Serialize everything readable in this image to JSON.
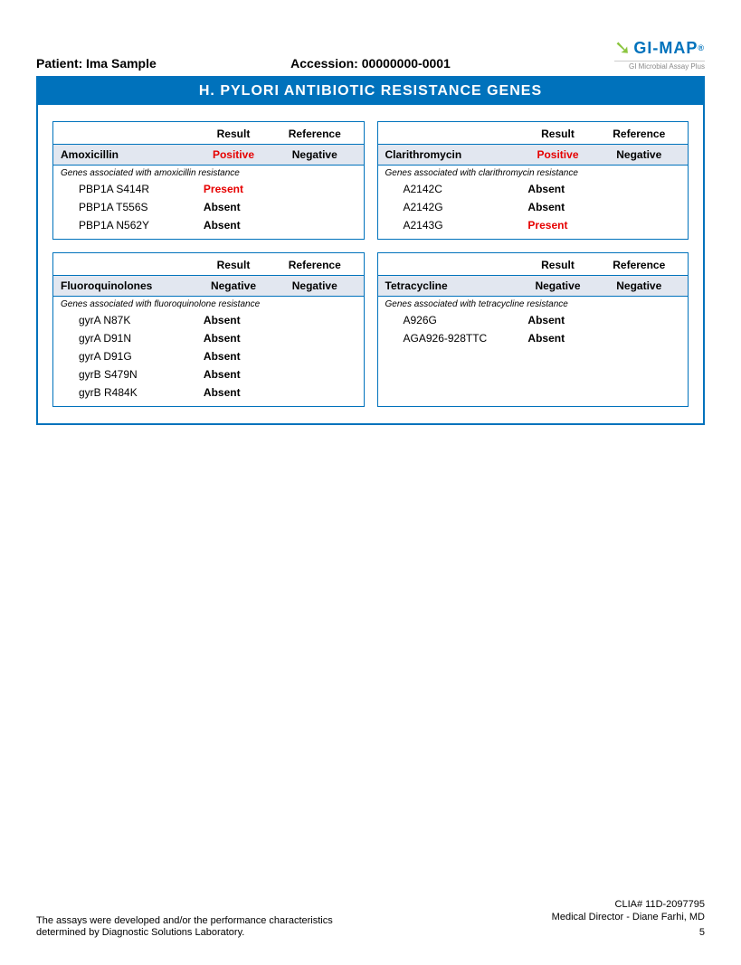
{
  "header": {
    "patient_label": "Patient:",
    "patient_name": "Ima Sample",
    "accession_label": "Accession:",
    "accession_value": "00000000-0001",
    "logo_text": "GI-MAP",
    "logo_sub": "GI Microbial Assay Plus"
  },
  "title": "H. PYLORI ANTIBIOTIC RESISTANCE GENES",
  "col_labels": {
    "result": "Result",
    "reference": "Reference"
  },
  "panels": [
    {
      "drug": "Amoxicillin",
      "result": "Positive",
      "result_pos": true,
      "reference": "Negative",
      "genes_note": "Genes associated with amoxicillin resistance",
      "genes": [
        {
          "name": "PBP1A S414R",
          "status": "Present",
          "pos": true
        },
        {
          "name": "PBP1A T556S",
          "status": "Absent",
          "pos": false
        },
        {
          "name": "PBP1A N562Y",
          "status": "Absent",
          "pos": false
        }
      ]
    },
    {
      "drug": "Clarithromycin",
      "result": "Positive",
      "result_pos": true,
      "reference": "Negative",
      "genes_note": "Genes associated with clarithromycin resistance",
      "genes": [
        {
          "name": "A2142C",
          "status": "Absent",
          "pos": false
        },
        {
          "name": "A2142G",
          "status": "Absent",
          "pos": false
        },
        {
          "name": "A2143G",
          "status": "Present",
          "pos": true
        }
      ]
    },
    {
      "drug": "Fluoroquinolones",
      "result": "Negative",
      "result_pos": false,
      "reference": "Negative",
      "genes_note": "Genes associated with fluoroquinolone resistance",
      "genes": [
        {
          "name": "gyrA N87K",
          "status": "Absent",
          "pos": false
        },
        {
          "name": "gyrA D91N",
          "status": "Absent",
          "pos": false
        },
        {
          "name": "gyrA D91G",
          "status": "Absent",
          "pos": false
        },
        {
          "name": "gyrB S479N",
          "status": "Absent",
          "pos": false
        },
        {
          "name": "gyrB R484K",
          "status": "Absent",
          "pos": false
        }
      ]
    },
    {
      "drug": "Tetracycline",
      "result": "Negative",
      "result_pos": false,
      "reference": "Negative",
      "genes_note": "Genes associated with tetracycline resistance",
      "genes": [
        {
          "name": "A926G",
          "status": "Absent",
          "pos": false
        },
        {
          "name": "AGA926-928TTC",
          "status": "Absent",
          "pos": false
        }
      ]
    }
  ],
  "footer": {
    "disclaimer": "The assays were developed and/or the performance characteristics determined by Diagnostic Solutions Laboratory.",
    "clia": "CLIA# 11D-2097795",
    "director": "Medical Director - Diane Farhi, MD",
    "page": "5"
  },
  "colors": {
    "brand_blue": "#0072bc",
    "panel_header_bg": "#e2e7f0",
    "positive_red": "#e60000"
  }
}
